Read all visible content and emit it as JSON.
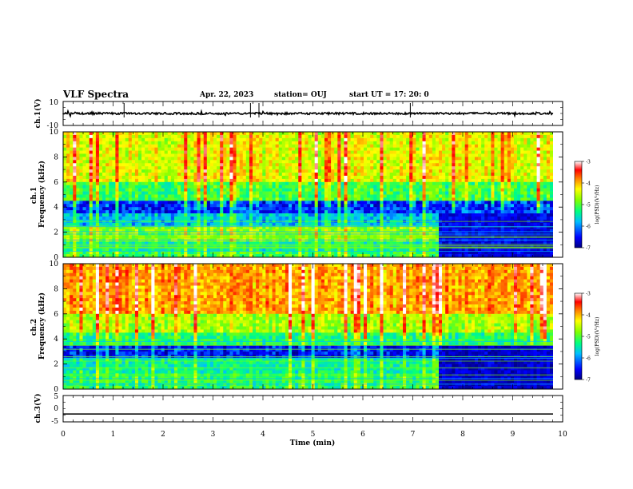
{
  "header": {
    "title": "VLF Spectra",
    "date": "Apr. 22, 2023",
    "station": "station= OUJ",
    "start": "start  UT =   17: 20: 0"
  },
  "chart_data": [
    {
      "type": "line",
      "panel": "ch1-waveform",
      "ylabel": "ch.1(V)",
      "ylim": [
        -10,
        10
      ],
      "yticks": [
        "10",
        "-10"
      ],
      "xlim": [
        0,
        10
      ],
      "series": [
        {
          "values_summary": "noise around 0 V with occasional spikes",
          "level": 0
        }
      ]
    },
    {
      "type": "heatmap",
      "panel": "ch1-spectrogram",
      "ylabel": "ch.1  Frequency (kHz)",
      "ylim": [
        0,
        10
      ],
      "yticks": [
        "0",
        "2",
        "4",
        "6",
        "8",
        "10"
      ],
      "xlim": [
        0,
        10
      ],
      "colorbar": {
        "label": "log(PSD)(V²/Hz)",
        "ticks": [
          "-3",
          "-4",
          "-5",
          "-6",
          "-7"
        ],
        "range": [
          -7,
          -3
        ]
      },
      "bands": [
        {
          "f": [
            6,
            10
          ],
          "level": -4.6
        },
        {
          "f": [
            4.5,
            6
          ],
          "level": -5.3
        },
        {
          "f": [
            3.4,
            4.5
          ],
          "level": -6.4
        },
        {
          "f": [
            2.4,
            3.4
          ],
          "level": -5.9
        },
        {
          "f": [
            1.3,
            2.4
          ],
          "level": -5.0
        },
        {
          "f": [
            0.6,
            1.3
          ],
          "level": -5.6
        },
        {
          "f": [
            0,
            0.6
          ],
          "level": -5.3
        }
      ],
      "change_time": 7.5,
      "after_change_low_level": -6.6
    },
    {
      "type": "heatmap",
      "panel": "ch2-spectrogram",
      "ylabel": "ch.2  Frequency (kHz)",
      "ylim": [
        0,
        10
      ],
      "yticks": [
        "0",
        "2",
        "4",
        "6",
        "8",
        "10"
      ],
      "xlim": [
        0,
        10
      ],
      "colorbar": {
        "label": "log(PSD)(V²/Hz)",
        "ticks": [
          "-3",
          "-4",
          "-5",
          "-6",
          "-7"
        ],
        "range": [
          -7,
          -3
        ]
      },
      "bands": [
        {
          "f": [
            6,
            10
          ],
          "level": -4.1
        },
        {
          "f": [
            4.5,
            6
          ],
          "level": -4.8
        },
        {
          "f": [
            3.5,
            4.5
          ],
          "level": -5.4
        },
        {
          "f": [
            2.6,
            3.5
          ],
          "level": -6.5
        },
        {
          "f": [
            1.2,
            2.6
          ],
          "level": -5.6
        },
        {
          "f": [
            0,
            1.2
          ],
          "level": -5.4
        }
      ],
      "change_time": 7.5,
      "after_change_low_level": -6.7
    },
    {
      "type": "line",
      "panel": "ch3-waveform",
      "ylabel": "ch.3(V)",
      "ylim": [
        -5,
        5
      ],
      "yticks": [
        "5",
        "0",
        "-5"
      ],
      "xlim": [
        0,
        10
      ],
      "series": [
        {
          "values_summary": "flat line",
          "level": -2
        }
      ]
    }
  ],
  "xaxis": {
    "label": "Time  (min)",
    "ticks": [
      "0",
      "1",
      "2",
      "3",
      "4",
      "5",
      "6",
      "7",
      "8",
      "9",
      "10"
    ]
  },
  "colors": {
    "colormap": [
      "#000080",
      "#0000ff",
      "#00bfff",
      "#00ff80",
      "#80ff00",
      "#ffff00",
      "#ff8000",
      "#ff0000",
      "#ffffff"
    ]
  }
}
